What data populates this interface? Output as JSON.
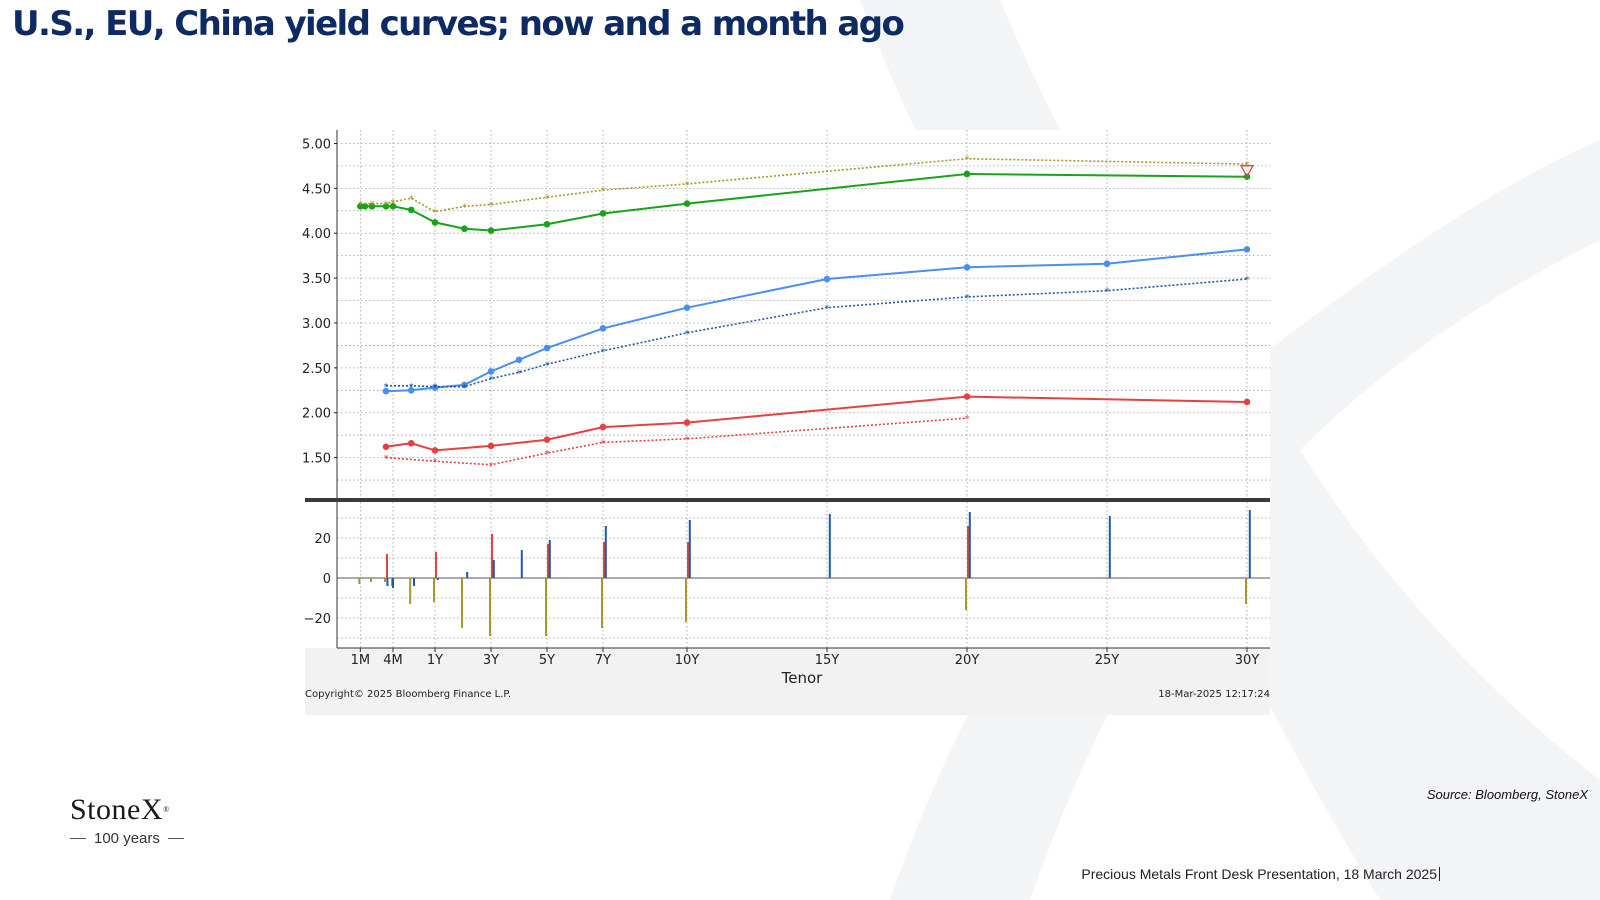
{
  "slide": {
    "title": "U.S., EU, China yield curves; now and a month ago",
    "source": "Source: Bloomberg, StoneX",
    "footer": "Precious Metals Front Desk Presentation, 18 March 2025"
  },
  "brand": {
    "name": "StoneX",
    "tagline": "100 years",
    "watermark_icon": "stonex-x-logo-icon"
  },
  "chart_data": {
    "type": "line",
    "xlabel": "Tenor",
    "copyright": "Copyright© 2025 Bloomberg Finance L.P.",
    "timestamp": "18-Mar-2025 12:17:24",
    "x_range_years": [
      0,
      30.5
    ],
    "tick_labels": [
      {
        "label": "1M",
        "years": 0.083
      },
      {
        "label": "4M",
        "years": 1.25
      },
      {
        "label": "1Y",
        "years": 2.75
      },
      {
        "label": "3Y",
        "years": 4.75
      },
      {
        "label": "5Y",
        "years": 6.75
      },
      {
        "label": "7Y",
        "years": 8.75
      },
      {
        "label": "10Y",
        "years": 11.75
      },
      {
        "label": "15Y",
        "years": 16.75
      },
      {
        "label": "20Y",
        "years": 21.75
      },
      {
        "label": "25Y",
        "years": 26.75
      },
      {
        "label": "30Y",
        "years": 31.75
      }
    ],
    "upper_panel": {
      "ylim": [
        1.05,
        5.15
      ],
      "yticks": [
        "5.00",
        "4.50",
        "4.00",
        "3.50",
        "3.00",
        "2.50",
        "2.00",
        "1.50"
      ],
      "series": [
        {
          "color": "#1aa31a",
          "style": "solid",
          "marker": "dot",
          "points": [
            [
              0.083,
              4.3
            ],
            [
              0.25,
              4.3
            ],
            [
              0.5,
              4.3
            ],
            [
              1.0,
              4.3
            ],
            [
              1.25,
              4.3
            ],
            [
              1.9,
              4.26
            ],
            [
              2.75,
              4.12
            ],
            [
              3.8,
              4.05
            ],
            [
              4.75,
              4.03
            ],
            [
              6.75,
              4.1
            ],
            [
              8.75,
              4.22
            ],
            [
              11.75,
              4.33
            ],
            [
              21.75,
              4.66
            ],
            [
              31.75,
              4.63
            ]
          ]
        },
        {
          "color": "#a8962a",
          "style": "dotted",
          "marker": "star",
          "points": [
            [
              0.083,
              4.33
            ],
            [
              0.5,
              4.33
            ],
            [
              1.0,
              4.33
            ],
            [
              1.25,
              4.35
            ],
            [
              1.9,
              4.39
            ],
            [
              2.75,
              4.24
            ],
            [
              3.8,
              4.3
            ],
            [
              4.75,
              4.32
            ],
            [
              6.75,
              4.4
            ],
            [
              8.75,
              4.48
            ],
            [
              11.75,
              4.55
            ],
            [
              21.75,
              4.83
            ],
            [
              31.75,
              4.77
            ]
          ]
        },
        {
          "color": "#4a8ef0",
          "style": "solid",
          "marker": "dot",
          "points": [
            [
              1.0,
              2.24
            ],
            [
              1.9,
              2.25
            ],
            [
              2.75,
              2.28
            ],
            [
              3.8,
              2.31
            ],
            [
              4.75,
              2.46
            ],
            [
              5.75,
              2.59
            ],
            [
              6.75,
              2.72
            ],
            [
              8.75,
              2.94
            ],
            [
              11.75,
              3.17
            ],
            [
              16.75,
              3.49
            ],
            [
              21.75,
              3.62
            ],
            [
              26.75,
              3.66
            ],
            [
              31.75,
              3.82
            ]
          ]
        },
        {
          "color": "#1f5aa8",
          "style": "dotted",
          "marker": "star",
          "points": [
            [
              1.0,
              2.3
            ],
            [
              1.9,
              2.3
            ],
            [
              2.75,
              2.29
            ],
            [
              3.8,
              2.29
            ],
            [
              4.75,
              2.38
            ],
            [
              5.75,
              2.45
            ],
            [
              6.75,
              2.54
            ],
            [
              8.75,
              2.69
            ],
            [
              11.75,
              2.89
            ],
            [
              16.75,
              3.17
            ],
            [
              21.75,
              3.29
            ],
            [
              26.75,
              3.36
            ],
            [
              31.75,
              3.49
            ]
          ]
        },
        {
          "color": "#e84040",
          "style": "solid",
          "marker": "dot",
          "points": [
            [
              1.0,
              1.62
            ],
            [
              1.9,
              1.66
            ],
            [
              2.75,
              1.58
            ],
            [
              4.75,
              1.63
            ],
            [
              6.75,
              1.7
            ],
            [
              8.75,
              1.84
            ],
            [
              11.75,
              1.89
            ],
            [
              21.75,
              2.18
            ],
            [
              31.75,
              2.12
            ]
          ]
        },
        {
          "color": "#e84040",
          "style": "dotted",
          "marker": "star",
          "points": [
            [
              1.0,
              1.5
            ],
            [
              2.75,
              1.46
            ],
            [
              4.75,
              1.42
            ],
            [
              6.75,
              1.55
            ],
            [
              8.75,
              1.67
            ],
            [
              11.75,
              1.71
            ],
            [
              21.75,
              1.94
            ]
          ]
        }
      ]
    },
    "lower_panel": {
      "ylim": [
        -35,
        38
      ],
      "yticks": [
        "20",
        "0",
        "−20"
      ],
      "bars": [
        {
          "color": "#a8962a",
          "values": [
            [
              0.083,
              -3
            ],
            [
              0.5,
              -2
            ],
            [
              1.0,
              -2
            ],
            [
              1.25,
              -4
            ],
            [
              1.9,
              -13
            ],
            [
              2.75,
              -12
            ],
            [
              3.75,
              -25
            ],
            [
              4.75,
              -29
            ],
            [
              6.75,
              -29
            ],
            [
              8.75,
              -25
            ],
            [
              11.75,
              -22
            ],
            [
              21.75,
              -16
            ],
            [
              31.75,
              -13
            ]
          ]
        },
        {
          "color": "#e84040",
          "values": [
            [
              1.0,
              12
            ],
            [
              2.75,
              13
            ],
            [
              4.75,
              22
            ],
            [
              6.75,
              17
            ],
            [
              8.75,
              18
            ],
            [
              11.75,
              18
            ],
            [
              21.75,
              26
            ]
          ]
        },
        {
          "color": "#1f5aa8",
          "values": [
            [
              1.05,
              -4
            ],
            [
              1.25,
              -5
            ],
            [
              2.0,
              -4
            ],
            [
              2.85,
              -1
            ],
            [
              3.9,
              3
            ],
            [
              4.85,
              9
            ],
            [
              5.85,
              14
            ],
            [
              6.85,
              19
            ],
            [
              8.85,
              26
            ],
            [
              11.85,
              29
            ],
            [
              16.85,
              32
            ],
            [
              21.85,
              33
            ],
            [
              26.85,
              31
            ],
            [
              31.85,
              34
            ]
          ]
        }
      ]
    }
  }
}
